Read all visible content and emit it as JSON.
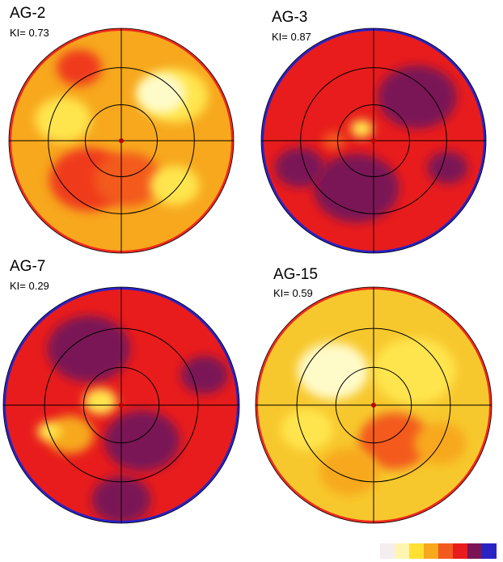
{
  "panels": [
    {
      "label": "AG-2",
      "ki": "KI= 0.73",
      "ring": "#ef2a1d",
      "base": "#f7a81d",
      "blobs": [
        {
          "color": "#ffe54d",
          "a": 40,
          "r": 0.62,
          "s": 0.3
        },
        {
          "color": "#fffbc9",
          "a": 50,
          "r": 0.55,
          "s": 0.22
        },
        {
          "color": "#ef3a1d",
          "a": 230,
          "r": 0.45,
          "s": 0.35
        },
        {
          "color": "#f35a1d",
          "a": 280,
          "r": 0.35,
          "s": 0.3
        },
        {
          "color": "#ffe54d",
          "a": 160,
          "r": 0.55,
          "s": 0.25
        },
        {
          "color": "#ef3a1d",
          "a": 120,
          "r": 0.75,
          "s": 0.2
        },
        {
          "color": "#ffe54d",
          "a": 320,
          "r": 0.62,
          "s": 0.22
        }
      ]
    },
    {
      "label": "AG-3",
      "ki": "KI= 0.87",
      "ring": "#2a22c4",
      "base": "#e81c1c",
      "blobs": [
        {
          "color": "#7a1456",
          "a": 45,
          "r": 0.55,
          "s": 0.35
        },
        {
          "color": "#7a1456",
          "a": 250,
          "r": 0.45,
          "s": 0.38
        },
        {
          "color": "#7a1456",
          "a": 200,
          "r": 0.7,
          "s": 0.22
        },
        {
          "color": "#ffe54d",
          "a": 135,
          "r": 0.15,
          "s": 0.1
        },
        {
          "color": "#f35a1d",
          "a": 180,
          "r": 0.35,
          "s": 0.1
        },
        {
          "color": "#7a1456",
          "a": 340,
          "r": 0.7,
          "s": 0.18
        }
      ]
    },
    {
      "label": "AG-7",
      "ki": "KI= 0.29",
      "ring": "#2a22c4",
      "base": "#e81c1c",
      "blobs": [
        {
          "color": "#7a1456",
          "a": 120,
          "r": 0.55,
          "s": 0.35
        },
        {
          "color": "#7a1456",
          "a": 300,
          "r": 0.35,
          "s": 0.32
        },
        {
          "color": "#7a1456",
          "a": 270,
          "r": 0.8,
          "s": 0.25
        },
        {
          "color": "#ffe54d",
          "a": 170,
          "r": 0.18,
          "s": 0.14
        },
        {
          "color": "#f7a81d",
          "a": 210,
          "r": 0.5,
          "s": 0.2
        },
        {
          "color": "#ffe54d",
          "a": 200,
          "r": 0.65,
          "s": 0.1
        },
        {
          "color": "#7a1456",
          "a": 20,
          "r": 0.75,
          "s": 0.2
        }
      ]
    },
    {
      "label": "AG-15",
      "ki": "KI= 0.59",
      "ring": "#ef2a1d",
      "base": "#f7c82d",
      "blobs": [
        {
          "color": "#fffbc9",
          "a": 140,
          "r": 0.45,
          "s": 0.3
        },
        {
          "color": "#ffe54d",
          "a": 40,
          "r": 0.45,
          "s": 0.35
        },
        {
          "color": "#f35a1d",
          "a": 300,
          "r": 0.35,
          "s": 0.3
        },
        {
          "color": "#f7a81d",
          "a": 250,
          "r": 0.6,
          "s": 0.25
        },
        {
          "color": "#f7a81d",
          "a": 330,
          "r": 0.65,
          "s": 0.22
        },
        {
          "color": "#ffe54d",
          "a": 200,
          "r": 0.6,
          "s": 0.22
        }
      ]
    }
  ],
  "legend_colors": [
    "#f4eeee",
    "#fff5b0",
    "#ffe033",
    "#f7a81d",
    "#f35a1d",
    "#e81c1c",
    "#7a1456",
    "#2a22c4"
  ]
}
